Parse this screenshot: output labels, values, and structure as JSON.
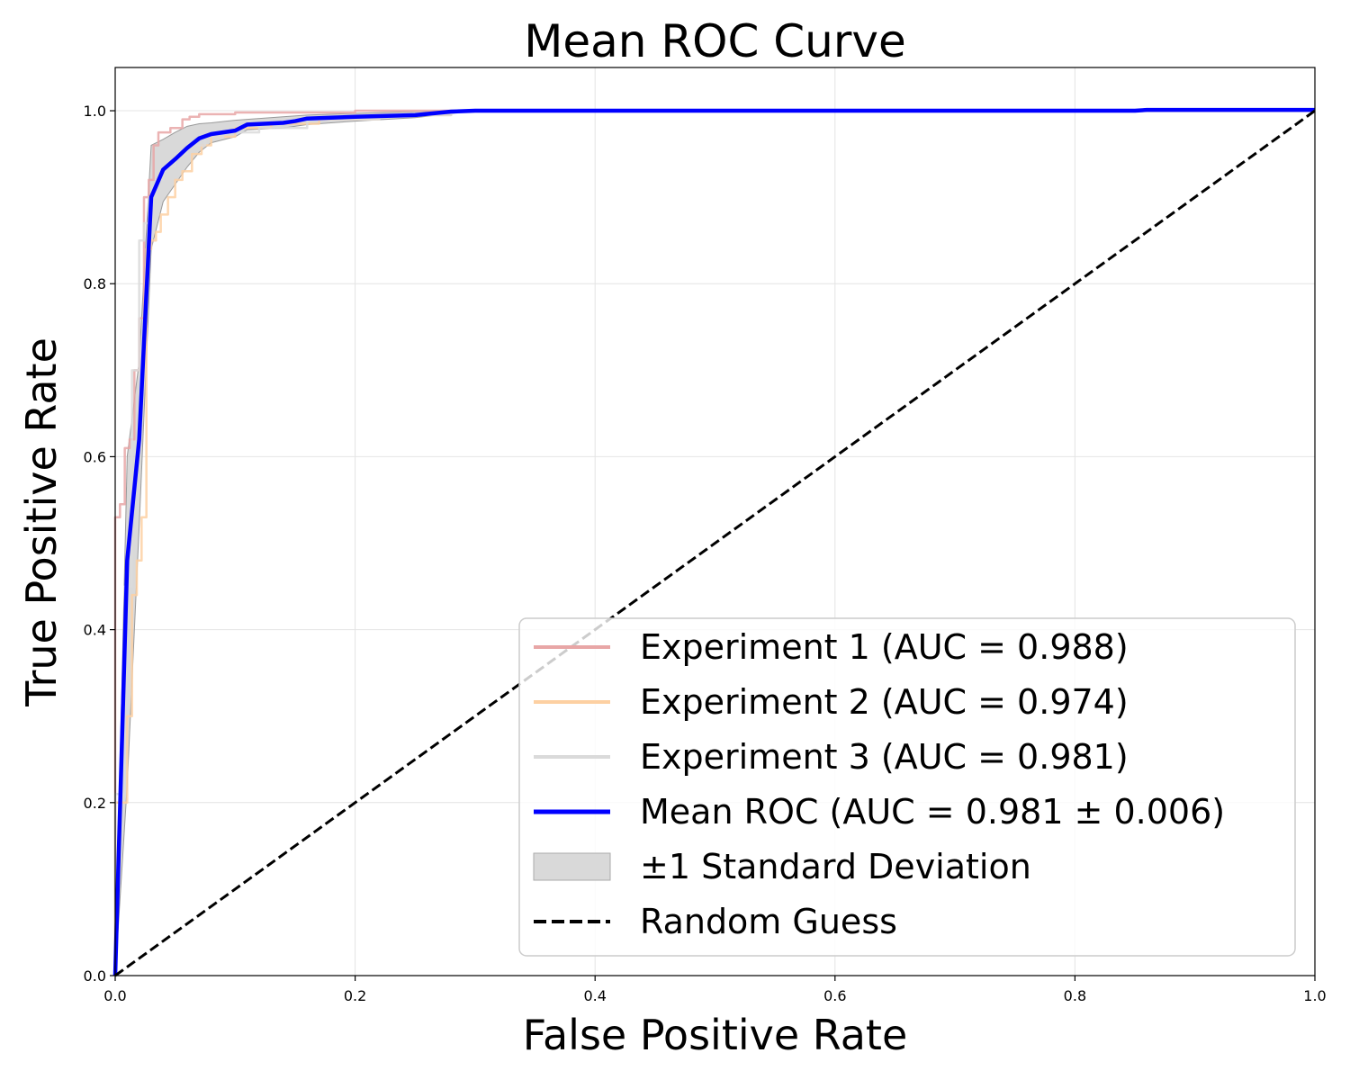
{
  "chart_data": {
    "type": "line",
    "title": "Mean ROC Curve",
    "xlabel": "False Positive Rate",
    "ylabel": "True Positive Rate",
    "xlim": [
      0.0,
      1.0
    ],
    "ylim": [
      0.0,
      1.05
    ],
    "grid": true,
    "legend_position": "lower-right",
    "x_ticks": [
      "0.0",
      "0.2",
      "0.4",
      "0.6",
      "0.8",
      "1.0"
    ],
    "y_ticks": [
      "0.0",
      "0.2",
      "0.4",
      "0.6",
      "0.8",
      "1.0"
    ],
    "series": [
      {
        "name": "Experiment 1 (AUC = 0.988)",
        "color": "#e8a6a6",
        "style": "step",
        "x": [
          0.0,
          0.0,
          0.004,
          0.004,
          0.008,
          0.008,
          0.012,
          0.012,
          0.016,
          0.016,
          0.02,
          0.02,
          0.024,
          0.024,
          0.028,
          0.028,
          0.032,
          0.032,
          0.036,
          0.036,
          0.046,
          0.046,
          0.056,
          0.056,
          0.062,
          0.062,
          0.07,
          0.07,
          0.1,
          0.1,
          0.2,
          0.2,
          1.0
        ],
        "y": [
          0.0,
          0.53,
          0.53,
          0.545,
          0.545,
          0.61,
          0.61,
          0.62,
          0.62,
          0.7,
          0.7,
          0.76,
          0.76,
          0.9,
          0.9,
          0.92,
          0.92,
          0.96,
          0.96,
          0.975,
          0.975,
          0.98,
          0.98,
          0.99,
          0.99,
          0.993,
          0.993,
          0.996,
          0.996,
          0.998,
          0.998,
          1.0,
          1.0
        ]
      },
      {
        "name": "Experiment 2 (AUC = 0.974)",
        "color": "#fdd0a2",
        "style": "step",
        "x": [
          0.0,
          0.0,
          0.01,
          0.01,
          0.014,
          0.014,
          0.018,
          0.018,
          0.022,
          0.022,
          0.026,
          0.026,
          0.03,
          0.03,
          0.034,
          0.034,
          0.038,
          0.038,
          0.044,
          0.044,
          0.05,
          0.05,
          0.056,
          0.056,
          0.064,
          0.064,
          0.072,
          0.072,
          0.08,
          0.08,
          0.1,
          0.1,
          0.13,
          0.13,
          0.17,
          0.17,
          0.22,
          0.22,
          0.28,
          0.28,
          1.0
        ],
        "y": [
          0.0,
          0.2,
          0.2,
          0.3,
          0.3,
          0.44,
          0.44,
          0.48,
          0.48,
          0.53,
          0.53,
          0.84,
          0.84,
          0.85,
          0.85,
          0.86,
          0.86,
          0.88,
          0.88,
          0.9,
          0.9,
          0.92,
          0.92,
          0.93,
          0.93,
          0.95,
          0.95,
          0.96,
          0.96,
          0.97,
          0.97,
          0.98,
          0.98,
          0.985,
          0.985,
          0.99,
          0.99,
          0.995,
          0.995,
          1.0,
          1.0
        ]
      },
      {
        "name": "Experiment 3 (AUC = 0.981)",
        "color": "#dadada",
        "style": "step",
        "x": [
          0.0,
          0.0,
          0.008,
          0.008,
          0.014,
          0.014,
          0.02,
          0.02,
          0.024,
          0.024,
          0.028,
          0.028,
          0.034,
          0.034,
          0.04,
          0.04,
          0.05,
          0.05,
          0.06,
          0.06,
          0.075,
          0.075,
          0.09,
          0.09,
          0.12,
          0.12,
          0.16,
          0.16,
          0.22,
          0.22,
          0.28,
          0.28,
          1.0
        ],
        "y": [
          0.0,
          0.21,
          0.21,
          0.45,
          0.45,
          0.7,
          0.7,
          0.85,
          0.85,
          0.87,
          0.87,
          0.9,
          0.9,
          0.92,
          0.92,
          0.935,
          0.935,
          0.95,
          0.95,
          0.96,
          0.96,
          0.97,
          0.97,
          0.975,
          0.975,
          0.98,
          0.98,
          0.99,
          0.99,
          0.995,
          0.995,
          1.0,
          1.0
        ]
      },
      {
        "name": "Mean ROC (AUC = 0.981 ± 0.006)",
        "color": "#0000ff",
        "style": "line",
        "x": [
          0.0,
          0.01,
          0.02,
          0.03,
          0.04,
          0.05,
          0.06,
          0.07,
          0.08,
          0.1,
          0.11,
          0.14,
          0.15,
          0.16,
          0.18,
          0.2,
          0.25,
          0.28,
          0.3,
          0.5,
          0.85,
          0.86,
          1.0
        ],
        "y": [
          0.0,
          0.48,
          0.62,
          0.9,
          0.932,
          0.944,
          0.957,
          0.968,
          0.973,
          0.977,
          0.984,
          0.986,
          0.988,
          0.991,
          0.992,
          0.993,
          0.995,
          0.999,
          1.0,
          1.0,
          1.0,
          1.001,
          1.001
        ]
      }
    ],
    "std_band": {
      "name": "±1 Standard Deviation",
      "color": "#cccccc",
      "x": [
        0.0,
        0.01,
        0.02,
        0.03,
        0.04,
        0.05,
        0.06,
        0.07,
        0.08,
        0.1,
        0.11,
        0.14,
        0.16,
        0.2,
        0.25,
        0.3,
        1.0
      ],
      "upper": [
        0.0,
        0.6,
        0.71,
        0.96,
        0.967,
        0.975,
        0.982,
        0.985,
        0.986,
        0.989,
        0.99,
        0.993,
        0.995,
        0.997,
        0.999,
        1.0,
        1.0
      ],
      "lower": [
        0.0,
        0.22,
        0.52,
        0.84,
        0.895,
        0.915,
        0.935,
        0.952,
        0.963,
        0.97,
        0.978,
        0.98,
        0.984,
        0.988,
        0.992,
        1.0,
        1.0
      ]
    },
    "reference_line": {
      "name": "Random Guess",
      "color": "#000000",
      "style": "dashed",
      "x": [
        0.0,
        1.0
      ],
      "y": [
        0.0,
        1.0
      ]
    },
    "legend": [
      "Experiment 1 (AUC = 0.988)",
      "Experiment 2 (AUC = 0.974)",
      "Experiment 3 (AUC = 0.981)",
      "Mean ROC (AUC = 0.981 ± 0.006)",
      "±1 Standard Deviation",
      "Random Guess"
    ]
  }
}
